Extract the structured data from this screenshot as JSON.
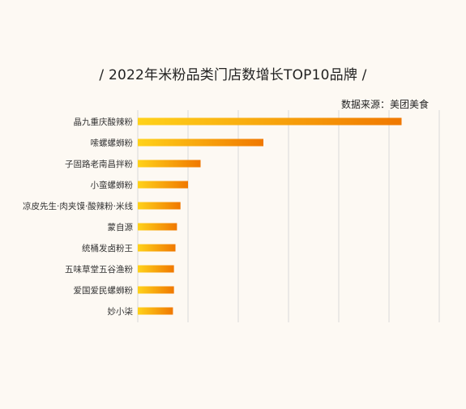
{
  "chart_data": {
    "type": "bar",
    "orientation": "horizontal",
    "title": "/ 2022年米粉品类门店数增长TOP10品牌 /",
    "source": "数据来源：美团美食",
    "categories": [
      "晶九重庆酸辣粉",
      "嗦螺螺蛳粉",
      "子固路老南昌拌粉",
      "小蛮螺蛳粉",
      "凉皮先生·肉夹馍·酸辣粉·米线",
      "蒙自源",
      "统桶发卤粉王",
      "五味草堂五谷渔粉",
      "爱国爱民螺蛳粉",
      "妙小柒"
    ],
    "values": [
      525,
      250,
      125,
      100,
      85,
      78,
      75,
      72,
      72,
      70
    ],
    "xlim": [
      0,
      600
    ],
    "xticks": [
      0,
      100,
      200,
      300,
      400,
      500,
      600
    ],
    "grid": true,
    "bar_gradient": [
      "#ffd21a",
      "#f07800"
    ]
  }
}
